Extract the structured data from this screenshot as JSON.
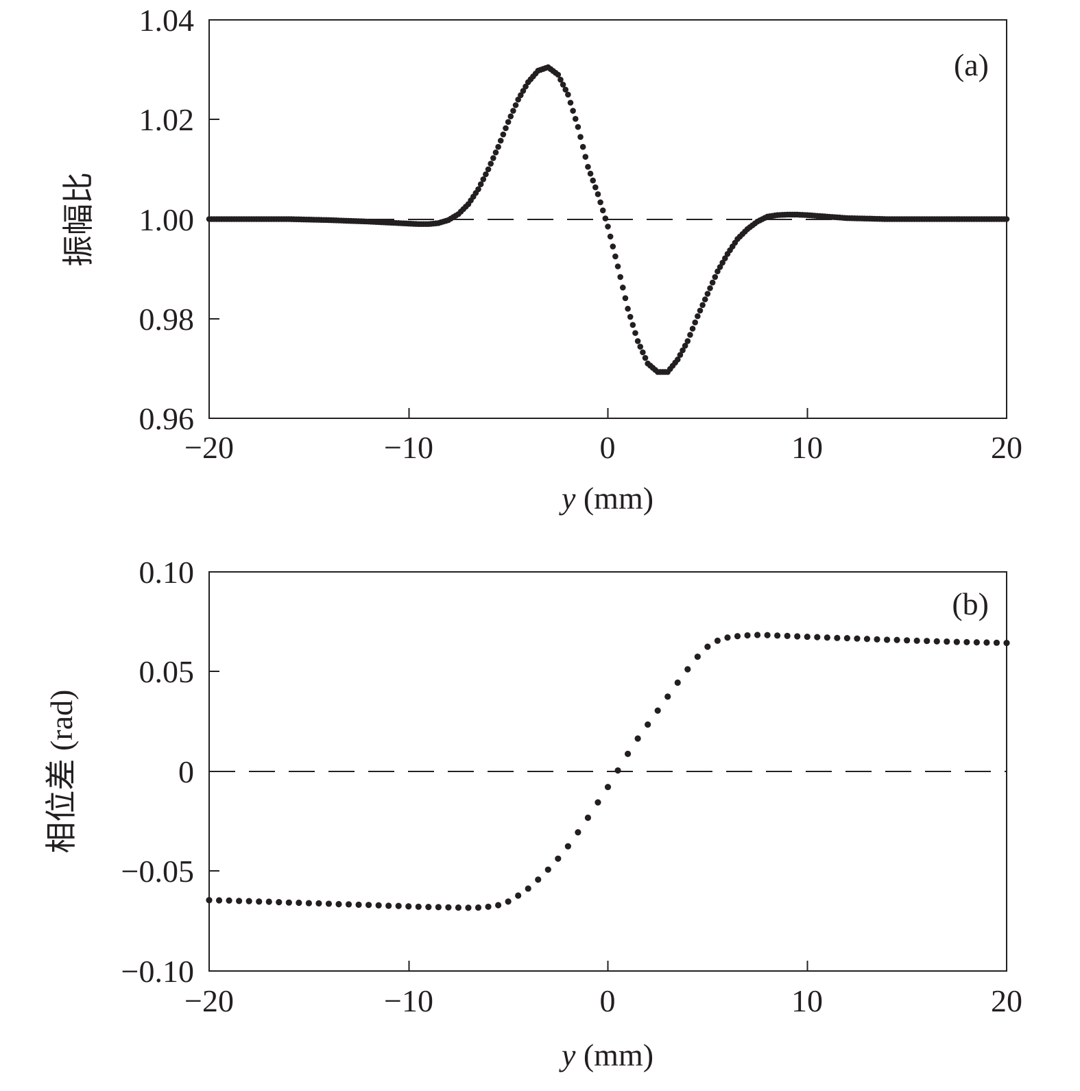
{
  "chart_data": [
    {
      "type": "scatter",
      "panel_label": "(a)",
      "xlabel_var": "y",
      "xlabel_unit": " (mm)",
      "ylabel": "振幅比",
      "xlim": [
        -20,
        20
      ],
      "ylim": [
        0.96,
        1.04
      ],
      "x_ticks": [
        -20,
        -10,
        0,
        10,
        20
      ],
      "x_tick_labels": [
        "−20",
        "−10",
        "0",
        "10",
        "20"
      ],
      "y_ticks": [
        0.96,
        0.98,
        1.0,
        1.02,
        1.04
      ],
      "y_tick_labels": [
        "0.96",
        "0.98",
        "1.00",
        "1.02",
        "1.04"
      ],
      "reference_line": 1.0,
      "grid": false,
      "series": [
        {
          "x": [
            -20,
            -18,
            -16,
            -14,
            -12,
            -11,
            -10,
            -9.5,
            -9,
            -8.5,
            -8,
            -7.5,
            -7,
            -6.5,
            -6,
            -5.5,
            -5,
            -4.5,
            -4,
            -3.5,
            -3,
            -2.5,
            -2,
            -1.5,
            -1,
            -0.5,
            0,
            0.5,
            1,
            1.5,
            2,
            2.5,
            3,
            3.5,
            4,
            4.5,
            5,
            5.5,
            6,
            6.5,
            7,
            7.5,
            8,
            8.5,
            9,
            9.5,
            10,
            11,
            12,
            14,
            16,
            18,
            20
          ],
          "y": [
            1.0,
            1.0,
            1.0,
            0.9998,
            0.9995,
            0.9993,
            0.9991,
            0.999,
            0.999,
            0.9992,
            0.9998,
            1.001,
            1.003,
            1.006,
            1.01,
            1.0145,
            1.0195,
            1.024,
            1.0275,
            1.0298,
            1.0305,
            1.029,
            1.025,
            1.0185,
            1.0105,
            1.005,
            0.9985,
            0.9905,
            0.982,
            0.9755,
            0.971,
            0.9693,
            0.9693,
            0.9718,
            0.9755,
            0.9805,
            0.985,
            0.9895,
            0.993,
            0.996,
            0.998,
            0.9995,
            1.0005,
            1.0008,
            1.0009,
            1.0009,
            1.0008,
            1.0005,
            1.0002,
            1.0,
            1.0,
            1.0,
            1.0
          ]
        }
      ]
    },
    {
      "type": "scatter",
      "panel_label": "(b)",
      "xlabel_var": "y",
      "xlabel_unit": " (mm)",
      "ylabel": "相位差 (rad)",
      "xlim": [
        -20,
        20
      ],
      "ylim": [
        -0.1,
        0.1
      ],
      "x_ticks": [
        -20,
        -10,
        0,
        10,
        20
      ],
      "x_tick_labels": [
        "−20",
        "−10",
        "0",
        "10",
        "20"
      ],
      "y_ticks": [
        -0.1,
        -0.05,
        0,
        0.05,
        0.1
      ],
      "y_tick_labels": [
        "−0.10",
        "−0.05",
        "0",
        "0.05",
        "0.10"
      ],
      "reference_line": 0,
      "grid": false,
      "series": [
        {
          "x": [
            -20,
            -19.5,
            -19,
            -18.5,
            -18,
            -17.5,
            -17,
            -16.5,
            -16,
            -15.5,
            -15,
            -14.5,
            -14,
            -13.5,
            -13,
            -12.5,
            -12,
            -11.5,
            -11,
            -10.5,
            -10,
            -9.5,
            -9,
            -8.5,
            -8,
            -7.5,
            -7,
            -6.5,
            -6,
            -5.5,
            -5,
            -4.5,
            -4,
            -3.5,
            -3,
            -2.5,
            -2,
            -1.5,
            -1,
            -0.5,
            0,
            0.5,
            1,
            1.5,
            2,
            2.5,
            3,
            3.5,
            4,
            4.5,
            5,
            5.5,
            6,
            6.5,
            7,
            7.5,
            8,
            8.5,
            9,
            9.5,
            10,
            10.5,
            11,
            11.5,
            12,
            12.5,
            13,
            13.5,
            14,
            14.5,
            15,
            15.5,
            16,
            16.5,
            17,
            17.5,
            18,
            18.5,
            19,
            19.5,
            20
          ],
          "y": [
            -0.0645,
            -0.0646,
            -0.0647,
            -0.0649,
            -0.065,
            -0.0652,
            -0.0653,
            -0.0655,
            -0.0657,
            -0.0658,
            -0.066,
            -0.0661,
            -0.0663,
            -0.0665,
            -0.0666,
            -0.0668,
            -0.0669,
            -0.0671,
            -0.0673,
            -0.0674,
            -0.0676,
            -0.0678,
            -0.0679,
            -0.068,
            -0.0681,
            -0.0682,
            -0.0683,
            -0.0682,
            -0.0678,
            -0.067,
            -0.0652,
            -0.0622,
            -0.0587,
            -0.0542,
            -0.0492,
            -0.0437,
            -0.0375,
            -0.0305,
            -0.0232,
            -0.0155,
            -0.0078,
            0.0005,
            0.0088,
            0.0165,
            0.0235,
            0.0305,
            0.0375,
            0.0445,
            0.0512,
            0.0575,
            0.0625,
            0.0655,
            0.0671,
            0.0678,
            0.0682,
            0.0684,
            0.0683,
            0.0681,
            0.0679,
            0.0677,
            0.0675,
            0.0673,
            0.0671,
            0.0669,
            0.0668,
            0.0666,
            0.0664,
            0.0662,
            0.066,
            0.0659,
            0.0657,
            0.0655,
            0.0654,
            0.0652,
            0.0651,
            0.0649,
            0.0648,
            0.0647,
            0.0646,
            0.0645,
            0.0644
          ]
        }
      ]
    }
  ]
}
